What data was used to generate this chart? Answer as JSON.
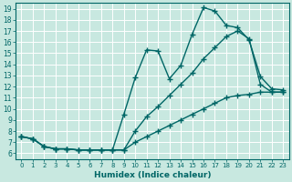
{
  "xlabel": "Humidex (Indice chaleur)",
  "bg_color": "#c8e8e0",
  "grid_color": "#ffffff",
  "line_color": "#006666",
  "xlim": [
    -0.5,
    23.5
  ],
  "ylim": [
    5.5,
    19.5
  ],
  "xticks": [
    0,
    1,
    2,
    3,
    4,
    5,
    6,
    7,
    8,
    9,
    10,
    11,
    12,
    13,
    14,
    15,
    16,
    17,
    18,
    19,
    20,
    21,
    22,
    23
  ],
  "yticks": [
    6,
    7,
    8,
    9,
    10,
    11,
    12,
    13,
    14,
    15,
    16,
    17,
    18,
    19
  ],
  "line1_x": [
    0,
    1,
    2,
    3,
    4,
    5,
    6,
    7,
    8,
    9,
    10,
    11,
    12,
    13,
    14,
    15,
    16,
    17,
    18,
    19,
    20,
    21,
    22,
    23
  ],
  "line1_y": [
    7.5,
    7.3,
    6.6,
    6.4,
    6.4,
    6.3,
    6.3,
    6.3,
    6.3,
    9.5,
    12.8,
    15.3,
    15.2,
    12.7,
    13.9,
    16.7,
    19.1,
    18.8,
    17.5,
    17.3,
    16.2,
    12.9,
    11.8,
    11.7
  ],
  "line2_x": [
    0,
    1,
    2,
    3,
    4,
    5,
    6,
    7,
    8,
    9,
    10,
    11,
    12,
    13,
    14,
    15,
    16,
    17,
    18,
    19,
    20,
    21,
    22,
    23
  ],
  "line2_y": [
    7.5,
    7.3,
    6.6,
    6.4,
    6.4,
    6.3,
    6.3,
    6.3,
    6.3,
    6.3,
    8.0,
    9.3,
    10.2,
    11.2,
    12.2,
    13.2,
    14.5,
    15.5,
    16.5,
    17.0,
    16.3,
    12.2,
    11.5,
    11.5
  ],
  "line3_x": [
    0,
    1,
    2,
    3,
    4,
    5,
    6,
    7,
    8,
    9,
    10,
    11,
    12,
    13,
    14,
    15,
    16,
    17,
    18,
    19,
    20,
    21,
    22,
    23
  ],
  "line3_y": [
    7.5,
    7.3,
    6.6,
    6.4,
    6.4,
    6.3,
    6.3,
    6.3,
    6.3,
    6.3,
    7.0,
    7.5,
    8.0,
    8.5,
    9.0,
    9.5,
    10.0,
    10.5,
    11.0,
    11.2,
    11.3,
    11.5,
    11.5,
    11.5
  ],
  "marker": "+",
  "markersize": 4,
  "linewidth": 1.0,
  "xlabel_fontsize": 6.5,
  "tick_fontsize_x": 5.0,
  "tick_fontsize_y": 5.5
}
